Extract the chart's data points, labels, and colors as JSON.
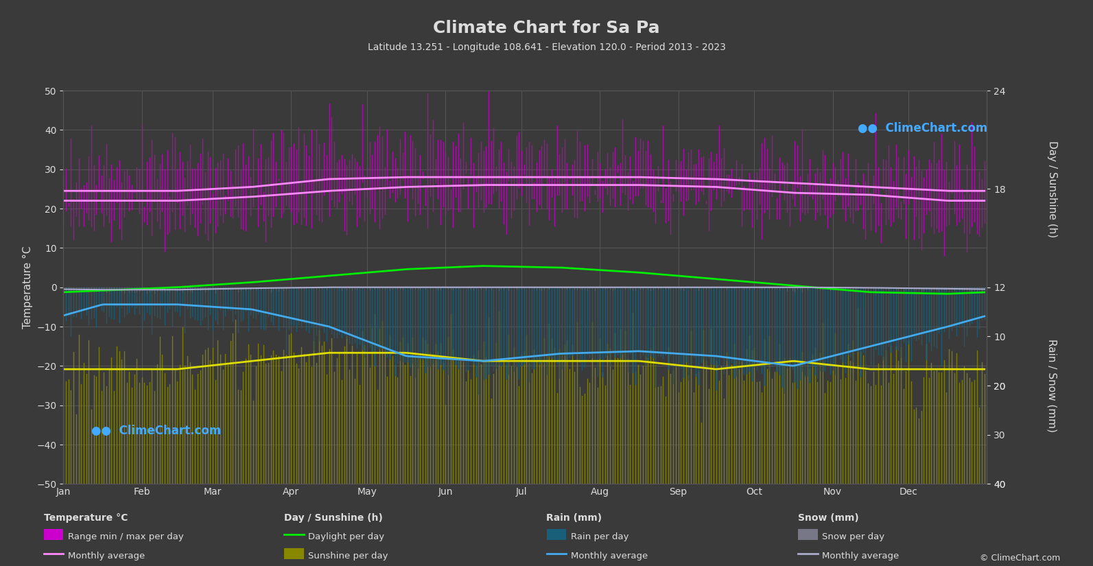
{
  "title": "Climate Chart for Sa Pa",
  "subtitle": "Latitude 13.251 - Longitude 108.641 - Elevation 120.0 - Period 2013 - 2023",
  "background_color": "#3a3a3a",
  "plot_bg_color": "#3a3a3a",
  "grid_color": "#555555",
  "text_color": "#dddddd",
  "months": [
    "Jan",
    "Feb",
    "Mar",
    "Apr",
    "May",
    "Jun",
    "Jul",
    "Aug",
    "Sep",
    "Oct",
    "Nov",
    "Dec"
  ],
  "temp_max_monthly": [
    24.5,
    24.5,
    25.5,
    27.5,
    28.0,
    28.0,
    28.0,
    28.0,
    27.5,
    26.5,
    25.5,
    24.5
  ],
  "temp_min_monthly": [
    22.0,
    22.0,
    23.0,
    24.5,
    25.5,
    26.0,
    26.0,
    26.0,
    25.5,
    24.0,
    23.5,
    22.0
  ],
  "temp_max_daily_mean": [
    31.0,
    31.5,
    33.0,
    35.0,
    35.0,
    33.5,
    33.0,
    33.0,
    32.5,
    31.5,
    30.0,
    29.5
  ],
  "temp_min_daily_mean": [
    16.0,
    16.5,
    18.5,
    21.0,
    22.0,
    22.5,
    22.0,
    22.5,
    22.0,
    20.0,
    18.0,
    16.5
  ],
  "daylight_hours": [
    11.8,
    12.0,
    12.3,
    12.7,
    13.1,
    13.3,
    13.2,
    12.9,
    12.5,
    12.1,
    11.7,
    11.6
  ],
  "sunshine_hours_daily": [
    7.0,
    7.0,
    7.5,
    8.0,
    8.0,
    7.5,
    7.5,
    7.5,
    7.0,
    7.5,
    7.0,
    7.0
  ],
  "rain_monthly_avg_mm": [
    3.5,
    3.5,
    4.5,
    8.0,
    14.0,
    15.0,
    13.5,
    13.0,
    14.0,
    16.0,
    12.0,
    8.0
  ],
  "rain_daily_mean_mm": [
    3.5,
    3.5,
    4.5,
    8.0,
    14.0,
    15.0,
    13.5,
    13.0,
    14.0,
    16.0,
    12.0,
    8.0
  ],
  "snow_monthly_avg_mm": [
    0.5,
    0.5,
    0.2,
    0.0,
    0.0,
    0.0,
    0.0,
    0.0,
    0.0,
    0.0,
    0.1,
    0.3
  ],
  "color_temp_range": "#cc00cc",
  "color_sunshine_range": "#888800",
  "color_rain": "#1a5f7a",
  "color_snow": "#777788",
  "color_temp_avg_line": "#ff88ff",
  "color_daylight_line": "#00ee00",
  "color_sunshine_line": "#dddd00",
  "color_rain_line": "#44aaee",
  "color_snow_line": "#aaaacc",
  "ylabel_left": "Temperature °C",
  "ylabel_right_top": "Day / Sunshine (h)",
  "ylabel_right_bot": "Rain / Snow (mm)",
  "temp_ylim_min": -50,
  "temp_ylim_max": 50,
  "sunshine_axis_max": 24,
  "rain_axis_max": 40
}
